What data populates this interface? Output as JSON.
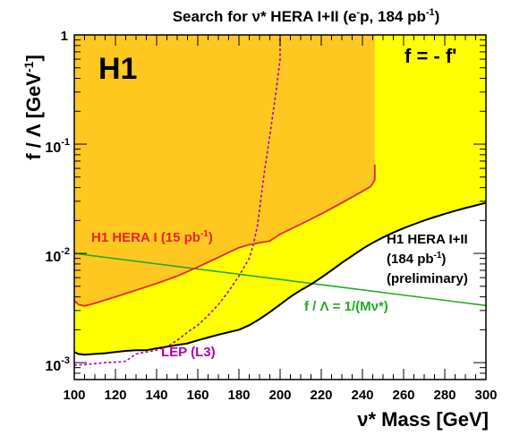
{
  "chart_data": {
    "type": "area",
    "title": "Search for ν* HERA I+II (e⁻p, 184 pb⁻¹)",
    "title_parts": {
      "main": "Search for ν* HERA I+II (e",
      "sup1": "-",
      "mid": "p, 184 pb",
      "sup2": "-1",
      "end": ")"
    },
    "xlabel": "ν* Mass [GeV]",
    "ylabel": "f / Λ [GeV⁻¹]",
    "ylabel_parts": {
      "main": "f / Λ [GeV",
      "sup": "-1",
      "end": "]"
    },
    "xlim": [
      100,
      300
    ],
    "ylim": [
      0.0007,
      1
    ],
    "yscale": "log",
    "x_ticks": [
      "100",
      "120",
      "140",
      "160",
      "180",
      "200",
      "220",
      "240",
      "260",
      "280",
      "300"
    ],
    "y_ticks": [
      {
        "value": 1,
        "base": "1",
        "exp": ""
      },
      {
        "value": 0.1,
        "base": "10",
        "exp": "-1"
      },
      {
        "value": 0.01,
        "base": "10",
        "exp": "-2"
      },
      {
        "value": 0.001,
        "base": "10",
        "exp": "-3"
      }
    ],
    "colors": {
      "hera12_excluded": "#ffff00",
      "hera1_excluded": "#ffc820",
      "hera1_line": "#e8222a",
      "lep_line": "#b000b0",
      "scale_line": "#22aa22",
      "hera12_line": "#000000"
    },
    "series": [
      {
        "name": "H1 HERA I+II (184 pb⁻¹) (preliminary)",
        "style": "solid-black-fill-yellow",
        "x": [
          100,
          102,
          105,
          110,
          115,
          120,
          125,
          130,
          135,
          140,
          145,
          150,
          155,
          160,
          165,
          170,
          175,
          180,
          185,
          190,
          195,
          200,
          205,
          210,
          215,
          220,
          225,
          230,
          235,
          240,
          245,
          250,
          255,
          260,
          265,
          270,
          275,
          280,
          285,
          290,
          295,
          300
        ],
        "y": [
          0.00125,
          0.0012,
          0.00118,
          0.0012,
          0.00122,
          0.00125,
          0.00128,
          0.0013,
          0.0013,
          0.00135,
          0.0014,
          0.00145,
          0.0015,
          0.0016,
          0.0017,
          0.0018,
          0.0019,
          0.002,
          0.0022,
          0.0025,
          0.0029,
          0.0034,
          0.004,
          0.0046,
          0.0052,
          0.006,
          0.007,
          0.0082,
          0.0095,
          0.011,
          0.0125,
          0.014,
          0.0155,
          0.017,
          0.0185,
          0.02,
          0.0215,
          0.023,
          0.0245,
          0.026,
          0.0275,
          0.029
        ]
      },
      {
        "name": "H1 HERA I (15 pb⁻¹)",
        "style": "solid-red-fill-orange",
        "x": [
          100,
          102,
          105,
          110,
          120,
          130,
          140,
          150,
          160,
          170,
          175,
          180,
          185,
          190,
          195,
          200,
          210,
          220,
          230,
          240,
          244,
          246,
          246
        ],
        "y": [
          0.0037,
          0.0034,
          0.0033,
          0.0035,
          0.004,
          0.0046,
          0.0053,
          0.0062,
          0.0075,
          0.0092,
          0.0102,
          0.0113,
          0.012,
          0.0125,
          0.013,
          0.015,
          0.0185,
          0.023,
          0.029,
          0.037,
          0.041,
          0.047,
          0.065
        ]
      },
      {
        "name": "LEP (L3)",
        "style": "dashed-magenta",
        "x": [
          100,
          105,
          110,
          115,
          120,
          125,
          130,
          140,
          145,
          150,
          155,
          160,
          165,
          170,
          175,
          180,
          185,
          187,
          189,
          190,
          192,
          195,
          198,
          200,
          200
        ],
        "y": [
          0.00095,
          0.00096,
          0.00098,
          0.001,
          0.00101,
          0.00103,
          0.0012,
          0.0013,
          0.0014,
          0.0016,
          0.0019,
          0.0022,
          0.0027,
          0.0034,
          0.0045,
          0.0062,
          0.009,
          0.012,
          0.018,
          0.025,
          0.05,
          0.12,
          0.3,
          0.6,
          1.0
        ]
      },
      {
        "name": "f / Λ = 1/(Mν*)",
        "style": "solid-green",
        "x": [
          100,
          300
        ],
        "y": [
          0.01,
          0.00333
        ]
      }
    ],
    "annotations": [
      {
        "id": "h1",
        "text": "H1"
      },
      {
        "id": "coupling",
        "text": "f = - f'"
      },
      {
        "id": "hera1",
        "main": "H1 HERA I (15 pb",
        "sup": "-1",
        "end": ")"
      },
      {
        "id": "hera12_a",
        "text": "H1 HERA I+II"
      },
      {
        "id": "hera12_b",
        "main": "(184 pb",
        "sup": "-1",
        "end": ")"
      },
      {
        "id": "hera12_c",
        "text": "(preliminary)"
      },
      {
        "id": "scale",
        "text": "f / Λ  = 1/(Mν*)"
      },
      {
        "id": "lep",
        "text": "LEP (L3)"
      }
    ]
  }
}
